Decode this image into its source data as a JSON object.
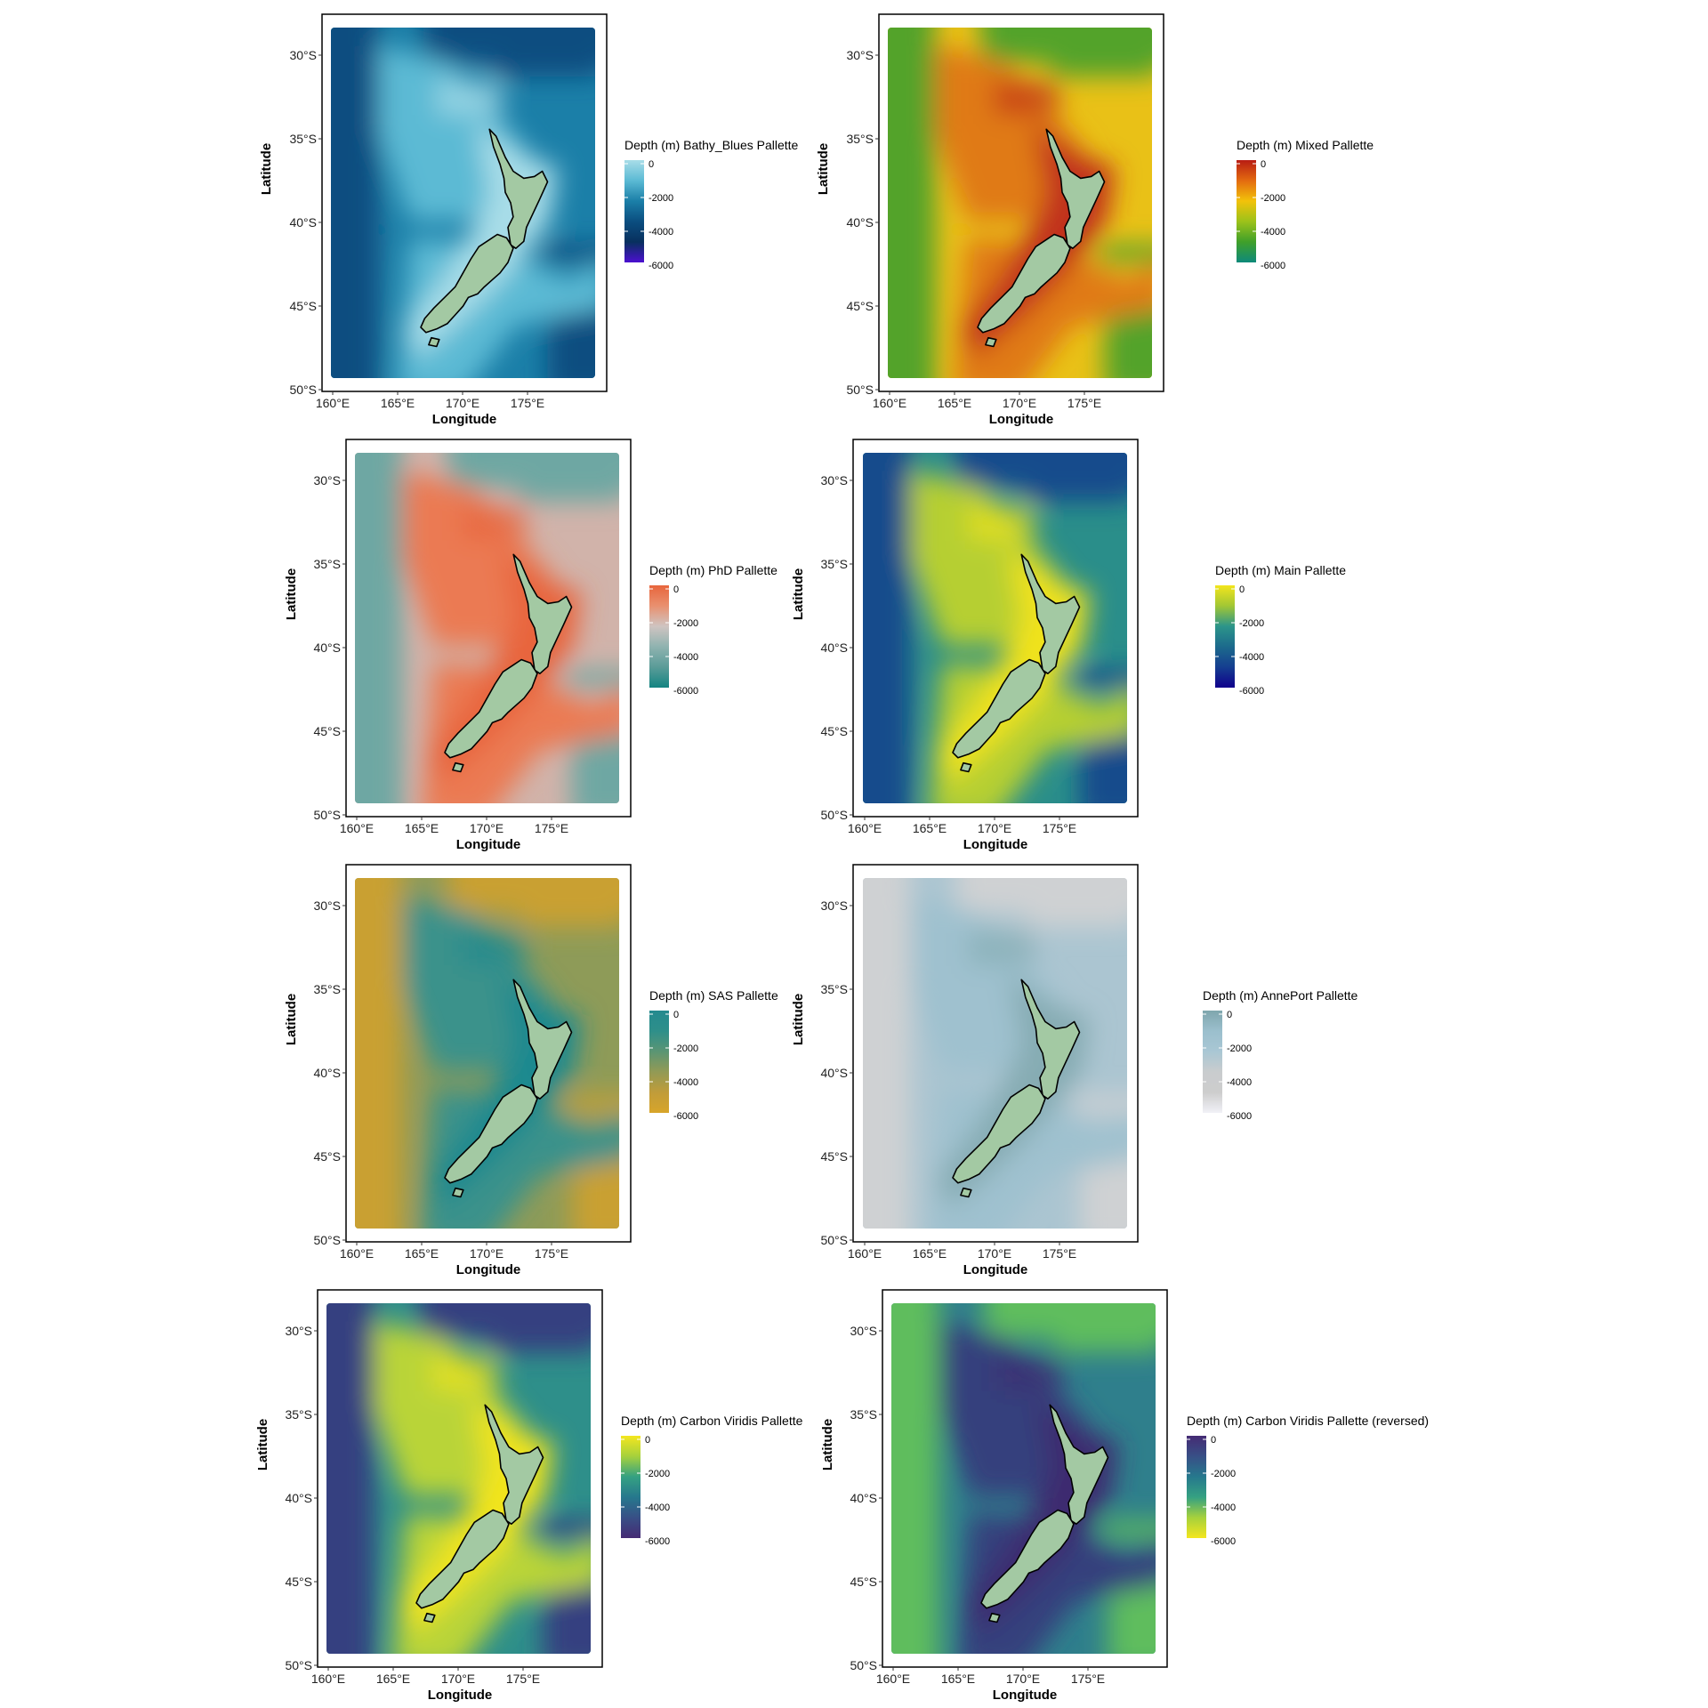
{
  "panels": [
    {
      "legend_title": "Depth (m) Bathy_Blues Pallette",
      "palette": [
        "#a8dde8",
        "#5bbad4",
        "#1b7fa8",
        "#0b4e80",
        "#08305e",
        "#4b0fd0"
      ],
      "field_colors": {
        "shelf": "#a8dde8",
        "mid": "#5bbad4",
        "deep": "#1b7fa8",
        "abyss": "#0b4e80"
      }
    },
    {
      "legend_title": "Depth (m) Mixed Pallette",
      "palette": [
        "#b81d13",
        "#e36a10",
        "#f2c20a",
        "#9cc21a",
        "#3fa02a",
        "#0e8a7a"
      ],
      "field_colors": {
        "shelf": "#c1301b",
        "mid": "#e07a14",
        "deep": "#e9c117",
        "abyss": "#52a32b"
      }
    },
    {
      "legend_title": "Depth (m) PhD Pallette",
      "palette": [
        "#e8653c",
        "#e9906f",
        "#cfc4c1",
        "#8fb3b0",
        "#5a9c98",
        "#138482"
      ],
      "field_colors": {
        "shelf": "#e8653c",
        "mid": "#eb7a52",
        "deep": "#d1b3aa",
        "abyss": "#6ea7a3"
      }
    },
    {
      "legend_title": "Depth (m) Main Pallette",
      "palette": [
        "#f3e51c",
        "#a2c734",
        "#2c958a",
        "#1c6a8c",
        "#153e90",
        "#10008c"
      ],
      "field_colors": {
        "shelf": "#f0e21d",
        "mid": "#b6cf31",
        "deep": "#2a8e8a",
        "abyss": "#174b8c"
      }
    },
    {
      "legend_title": "Depth (m) SAS Pallette",
      "palette": [
        "#248a8f",
        "#2e8f8a",
        "#5b9574",
        "#929a55",
        "#c09c3a",
        "#d8a52a"
      ],
      "field_colors": {
        "shelf": "#1f898f",
        "mid": "#3a928b",
        "deep": "#8e9b58",
        "abyss": "#c9a033"
      }
    },
    {
      "legend_title": "Depth (m) AnnePort Pallette",
      "palette": [
        "#7fa6ad",
        "#9bbfcd",
        "#a9c7d4",
        "#c9ccce",
        "#cdcdcd",
        "#f1f1f7"
      ],
      "field_colors": {
        "shelf": "#86acb3",
        "mid": "#9fc1cf",
        "deep": "#abc5d1",
        "abyss": "#cfd1d3"
      }
    },
    {
      "legend_title": "Depth (m) Carbon Viridis Pallette",
      "palette": [
        "#f4e61e",
        "#a6d13c",
        "#35a182",
        "#26788d",
        "#384f86",
        "#452b74"
      ],
      "field_colors": {
        "shelf": "#f1e41c",
        "mid": "#b9d437",
        "deep": "#2e8f8a",
        "abyss": "#353f80"
      }
    },
    {
      "legend_title": "Depth (m) Carbon Viridis Pallette (reversed)",
      "palette": [
        "#452b74",
        "#384f86",
        "#26788d",
        "#35a182",
        "#a6d13c",
        "#f4e61e"
      ],
      "field_colors": {
        "shelf": "#3e2a70",
        "mid": "#35407d",
        "deep": "#2f7f8c",
        "abyss": "#5fbd5d"
      }
    }
  ],
  "shared": {
    "x_ticks": [
      "160°E",
      "165°E",
      "170°E",
      "175°E"
    ],
    "y_ticks": [
      "30°S",
      "35°S",
      "40°S",
      "45°S",
      "50°S"
    ],
    "x_title": "Longitude",
    "y_title": "Latitude",
    "legend_labels": [
      "0",
      "-2000",
      "-4000",
      "-6000"
    ],
    "land_color": "#a3c9a3",
    "coast_color": "#000000"
  }
}
